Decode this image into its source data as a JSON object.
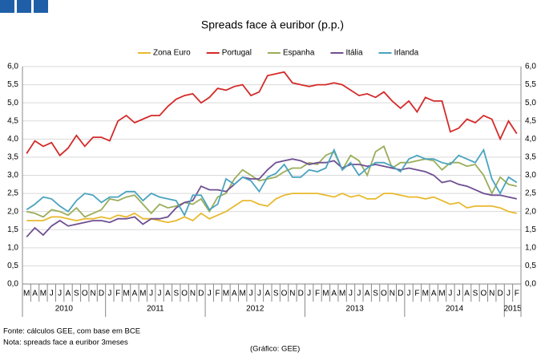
{
  "chart_data": {
    "type": "line",
    "title": "Spreads face à euribor (p.p.)",
    "categories": [
      "M",
      "A",
      "M",
      "J",
      "J",
      "A",
      "S",
      "O",
      "N",
      "D",
      "J",
      "F",
      "M",
      "A",
      "M",
      "J",
      "J",
      "A",
      "S",
      "O",
      "N",
      "D",
      "J",
      "F",
      "M",
      "A",
      "M",
      "J",
      "J",
      "A",
      "S",
      "O",
      "N",
      "D",
      "J",
      "F",
      "M",
      "A",
      "M",
      "J",
      "J",
      "A",
      "S",
      "O",
      "N",
      "D",
      "J",
      "F",
      "M",
      "A",
      "M",
      "J",
      "J",
      "A",
      "S",
      "O",
      "N",
      "D",
      "J",
      "F"
    ],
    "years": [
      "2010",
      "2011",
      "2012",
      "2013",
      "2014",
      "2015"
    ],
    "series": [
      {
        "name": "Zona Euro",
        "color": "#e8b92e",
        "values": [
          1.75,
          1.75,
          1.75,
          1.85,
          1.85,
          1.8,
          1.75,
          1.8,
          1.8,
          1.85,
          1.8,
          1.9,
          1.85,
          1.95,
          1.8,
          1.8,
          1.75,
          1.7,
          1.75,
          1.85,
          1.75,
          1.95,
          1.8,
          1.9,
          2.0,
          2.15,
          2.3,
          2.3,
          2.2,
          2.15,
          2.35,
          2.45,
          2.5,
          2.5,
          2.5,
          2.5,
          2.45,
          2.4,
          2.5,
          2.4,
          2.45,
          2.35,
          2.35,
          2.5,
          2.5,
          2.45,
          2.4,
          2.4,
          2.35,
          2.4,
          2.3,
          2.2,
          2.25,
          2.1,
          2.15,
          2.15,
          2.15,
          2.1,
          2.0,
          1.95
        ]
      },
      {
        "name": "Portugal",
        "color": "#d42a2a",
        "values": [
          3.6,
          3.95,
          3.8,
          3.9,
          3.55,
          3.75,
          4.1,
          3.8,
          4.05,
          4.05,
          3.95,
          4.5,
          4.65,
          4.45,
          4.55,
          4.65,
          4.65,
          4.9,
          5.1,
          5.2,
          5.25,
          5.0,
          5.15,
          5.4,
          5.35,
          5.45,
          5.5,
          5.2,
          5.3,
          5.75,
          5.8,
          5.85,
          5.55,
          5.5,
          5.45,
          5.5,
          5.5,
          5.55,
          5.5,
          5.35,
          5.2,
          5.25,
          5.15,
          5.3,
          5.05,
          4.85,
          5.05,
          4.75,
          5.15,
          5.05,
          5.05,
          4.2,
          4.3,
          4.55,
          4.45,
          4.65,
          4.55,
          4.0,
          4.5,
          4.15
        ]
      },
      {
        "name": "Espanha",
        "color": "#9aae5a",
        "values": [
          2.0,
          1.95,
          1.85,
          2.05,
          2.0,
          1.9,
          2.1,
          1.85,
          1.95,
          2.05,
          2.35,
          2.3,
          2.4,
          2.45,
          2.2,
          1.95,
          2.2,
          2.1,
          2.15,
          2.25,
          2.2,
          2.35,
          2.0,
          2.4,
          2.5,
          2.9,
          3.15,
          3.0,
          2.85,
          2.9,
          2.95,
          3.1,
          3.2,
          3.2,
          3.35,
          3.3,
          3.55,
          3.65,
          3.15,
          3.55,
          3.4,
          3.0,
          3.65,
          3.8,
          3.2,
          3.35,
          3.35,
          3.4,
          3.45,
          3.4,
          3.15,
          3.35,
          3.35,
          3.25,
          3.3,
          3.0,
          2.5,
          2.95,
          2.75,
          2.7
        ]
      },
      {
        "name": "Itália",
        "color": "#6f4f92",
        "values": [
          1.3,
          1.55,
          1.35,
          1.6,
          1.75,
          1.6,
          1.65,
          1.7,
          1.75,
          1.75,
          1.7,
          1.8,
          1.8,
          1.85,
          1.65,
          1.8,
          1.8,
          1.85,
          2.1,
          2.25,
          2.3,
          2.7,
          2.6,
          2.6,
          2.55,
          2.75,
          2.95,
          2.9,
          2.9,
          3.15,
          3.35,
          3.4,
          3.45,
          3.4,
          3.3,
          3.35,
          3.35,
          3.4,
          3.2,
          3.3,
          3.3,
          3.25,
          3.3,
          3.25,
          3.2,
          3.15,
          3.2,
          3.15,
          3.1,
          3.0,
          2.8,
          2.85,
          2.75,
          2.7,
          2.6,
          2.5,
          2.45,
          2.45,
          2.4,
          2.35
        ]
      },
      {
        "name": "Irlanda",
        "color": "#4aa3c0",
        "values": [
          2.05,
          2.2,
          2.4,
          2.35,
          2.15,
          2.0,
          2.3,
          2.5,
          2.45,
          2.25,
          2.4,
          2.4,
          2.55,
          2.55,
          2.3,
          2.5,
          2.4,
          2.35,
          2.3,
          1.9,
          2.45,
          2.45,
          2.05,
          2.2,
          2.9,
          2.75,
          2.95,
          2.85,
          2.55,
          2.95,
          3.05,
          3.3,
          2.95,
          2.95,
          3.15,
          3.1,
          3.2,
          3.7,
          3.15,
          3.35,
          3.0,
          3.2,
          3.35,
          3.35,
          3.25,
          3.1,
          3.45,
          3.55,
          3.45,
          3.45,
          3.35,
          3.3,
          3.55,
          3.45,
          3.35,
          3.7,
          2.9,
          2.5,
          2.95,
          2.8
        ]
      }
    ],
    "ylim": [
      0,
      6
    ],
    "yticks": [
      {
        "value": 0,
        "label": "0,0"
      },
      {
        "value": 0.5,
        "label": "0,5"
      },
      {
        "value": 1,
        "label": "1,0"
      },
      {
        "value": 1.5,
        "label": "1,5"
      },
      {
        "value": 2,
        "label": "2,0"
      },
      {
        "value": 2.5,
        "label": "2,5"
      },
      {
        "value": 3,
        "label": "3,0"
      },
      {
        "value": 3.5,
        "label": "3,5"
      },
      {
        "value": 4,
        "label": "4,0"
      },
      {
        "value": 4.5,
        "label": "4,5"
      },
      {
        "value": 5,
        "label": "5,0"
      },
      {
        "value": 5.5,
        "label": "5,5"
      },
      {
        "value": 6,
        "label": "6,0"
      }
    ],
    "grid": true,
    "legend": "top",
    "notes": [
      "Fonte: cálculos GEE, com base em BCE",
      "Nota: spreads face a euribor 3meses"
    ],
    "credit": "(Gráfico: GEE)"
  }
}
